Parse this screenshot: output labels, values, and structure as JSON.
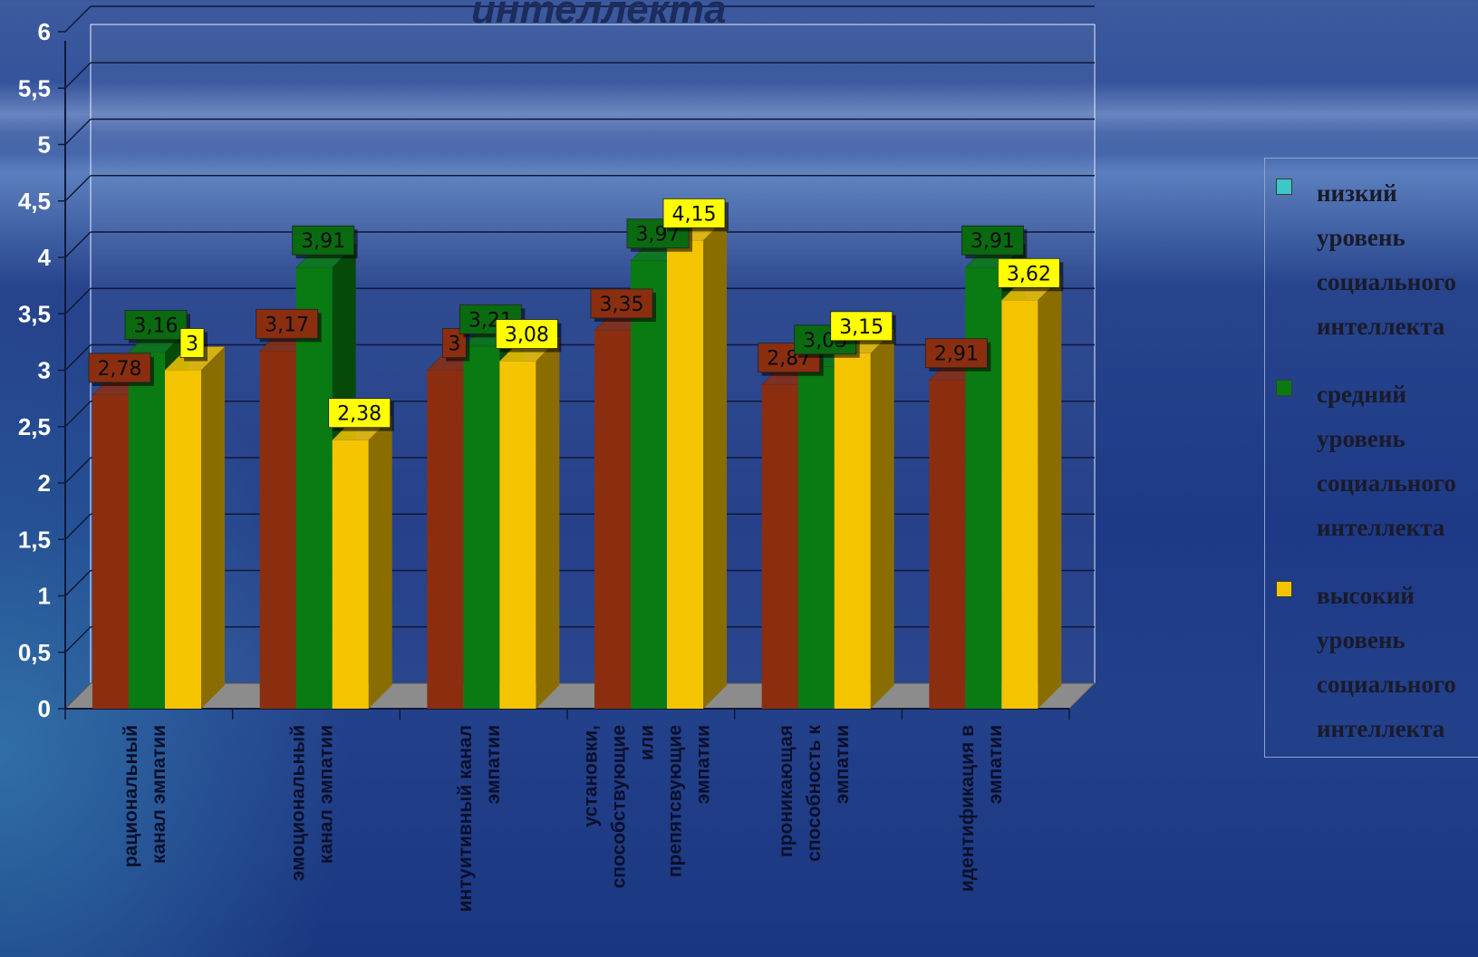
{
  "chart_data": {
    "type": "bar",
    "title": "интеллекта",
    "categories": [
      "рациональный\nканал эмпатии",
      "эмоциональный\nканал эмпатии",
      "интуитивный канал\nэмпатии",
      "установки,\nспособствующие\nили\nпрепятсвующие\nэмпатии",
      "проникающая\nспособность к\nэмпатии",
      "идентификация в\nэмпатии"
    ],
    "series": [
      {
        "name": "низкий уровень социального интеллекта",
        "values": [
          2.78,
          3.17,
          3,
          3.35,
          2.87,
          2.91
        ],
        "labels": [
          "2,78",
          "3,17",
          "3",
          "3,35",
          "2,87",
          "2,91"
        ],
        "color": "#8b2e10",
        "side": "#5c1c08",
        "label_bg": "#8b2e10",
        "label_fg": "#0a0a0a"
      },
      {
        "name": "средний уровень социального интеллекта",
        "values": [
          3.16,
          3.91,
          3.21,
          3.97,
          3.03,
          3.91
        ],
        "labels": [
          "3,16",
          "3,91",
          "3,21",
          "3,97",
          "3,03",
          "3,91"
        ],
        "color": "#0a7a12",
        "side": "#064a0a",
        "label_bg": "#0a6a10",
        "label_fg": "#0a0a0a"
      },
      {
        "name": "высокий уровень социального интеллекта",
        "values": [
          3,
          2.38,
          3.08,
          4.15,
          3.15,
          3.62
        ],
        "labels": [
          "3",
          "2,38",
          "3,08",
          "4,15",
          "3,15",
          "3,62"
        ],
        "color": "#f5c400",
        "side": "#8a6d00",
        "label_bg": "#ffff00",
        "label_fg": "#0a0a0a"
      }
    ],
    "yticks": [
      "0",
      "0,5",
      "1",
      "1,5",
      "2",
      "2,5",
      "3",
      "3,5",
      "4",
      "4,5",
      "5",
      "5,5",
      "6"
    ],
    "ylim": [
      0,
      6
    ],
    "grid": true,
    "legend_position": "right"
  },
  "legend": {
    "items": [
      {
        "text": "низкий\nуровень\nсоциального\nинтеллекта",
        "color": "#3cc8c8"
      },
      {
        "text": "средний\nуровень\nсоциального\nинтеллекта",
        "color": "#0a7a12"
      },
      {
        "text": "высокий\nуровень\nсоциального\nинтеллекта",
        "color": "#f5c400"
      }
    ]
  }
}
